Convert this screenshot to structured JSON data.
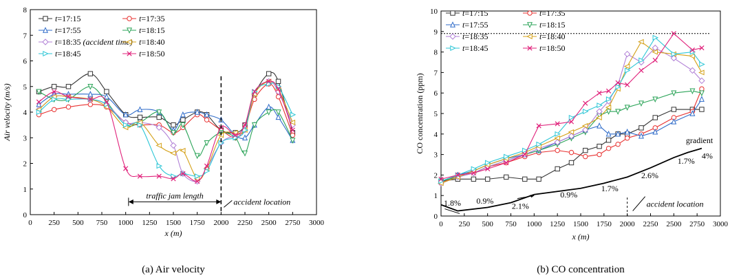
{
  "chart_data": [
    {
      "type": "line",
      "caption": "(a) Air velocity",
      "xlabel": "x (m)",
      "ylabel": "Air velocity (m/s)",
      "xlim": [
        0,
        3000
      ],
      "ylim": [
        0,
        8
      ],
      "xticks": [
        0,
        250,
        500,
        750,
        1000,
        1250,
        1500,
        1750,
        2000,
        2250,
        2500,
        2750,
        3000
      ],
      "yticks": [
        0,
        1,
        2,
        3,
        4,
        5,
        6,
        7,
        8
      ],
      "legend_position": "top-left",
      "annotations": {
        "jam": "traffic jam length",
        "accident": "accident location"
      },
      "accident_x": 2000,
      "jam_range": [
        1030,
        2000
      ],
      "x": [
        90,
        250,
        400,
        630,
        800,
        1000,
        1150,
        1350,
        1500,
        1600,
        1750,
        1850,
        2000,
        2150,
        2250,
        2350,
        2500,
        2600,
        2750
      ],
      "series": [
        {
          "name": "t=17:15",
          "color": "#333333",
          "marker": "square",
          "values": [
            4.8,
            5.0,
            5.0,
            5.5,
            4.8,
            3.9,
            3.8,
            3.8,
            3.5,
            3.7,
            4.0,
            3.9,
            3.3,
            3.2,
            3.5,
            4.7,
            5.5,
            5.2,
            3.2
          ]
        },
        {
          "name": "t=17:35",
          "color": "#e8302f",
          "marker": "circle",
          "values": [
            3.9,
            4.1,
            4.2,
            4.3,
            4.2,
            3.6,
            3.5,
            3.5,
            3.2,
            3.4,
            3.9,
            3.7,
            3.3,
            3.0,
            3.4,
            4.5,
            5.1,
            4.6,
            3.1
          ]
        },
        {
          "name": "t=17:55",
          "color": "#2e6bc9",
          "marker": "triangle-up",
          "values": [
            4.3,
            4.7,
            4.7,
            4.7,
            4.6,
            3.9,
            4.1,
            4.0,
            3.3,
            3.9,
            4.0,
            3.9,
            3.7,
            3.1,
            3.0,
            3.5,
            4.2,
            3.8,
            2.9
          ]
        },
        {
          "name": "t=18:15",
          "color": "#2aa357",
          "marker": "triangle-down",
          "values": [
            4.8,
            4.5,
            4.5,
            5.0,
            4.4,
            3.5,
            3.6,
            4.0,
            3.2,
            3.5,
            2.3,
            2.8,
            3.2,
            3.0,
            2.4,
            3.5,
            4.0,
            4.0,
            2.9
          ]
        },
        {
          "name": "t=18:35 (accident time)",
          "color": "#b07fd6",
          "marker": "diamond",
          "values": [
            4.1,
            4.6,
            4.6,
            4.5,
            4.3,
            3.6,
            3.6,
            3.4,
            2.7,
            1.6,
            1.3,
            1.8,
            2.8,
            3.1,
            3.3,
            4.7,
            5.2,
            4.8,
            3.5
          ]
        },
        {
          "name": "t=18:40",
          "color": "#d4a017",
          "marker": "triangle-left",
          "values": [
            4.1,
            4.6,
            4.6,
            4.5,
            4.2,
            3.4,
            3.6,
            2.7,
            2.4,
            2.5,
            1.4,
            1.8,
            3.1,
            3.2,
            3.3,
            4.7,
            5.2,
            4.9,
            3.6
          ]
        },
        {
          "name": "t=18:45",
          "color": "#2cc6d6",
          "marker": "triangle-right",
          "values": [
            4.0,
            4.5,
            4.5,
            4.5,
            4.3,
            3.5,
            3.5,
            1.9,
            1.5,
            1.6,
            1.5,
            1.7,
            2.8,
            3.0,
            3.3,
            4.8,
            5.1,
            5.0,
            3.9
          ]
        },
        {
          "name": "t=18:50",
          "color": "#e0207a",
          "marker": "x",
          "values": [
            4.4,
            4.8,
            4.6,
            4.5,
            4.4,
            1.8,
            1.5,
            1.5,
            1.4,
            1.6,
            1.3,
            1.9,
            3.4,
            3.1,
            3.5,
            4.8,
            5.2,
            4.9,
            3.3
          ]
        }
      ]
    },
    {
      "type": "line",
      "caption": "(b) CO concentration",
      "xlabel": "x (m)",
      "ylabel": "CO concentration (ppm)",
      "xlim": [
        0,
        3000
      ],
      "ylim": [
        0,
        10
      ],
      "xticks": [
        0,
        250,
        500,
        750,
        1000,
        1250,
        1500,
        1750,
        2000,
        2250,
        2500,
        2750,
        3000
      ],
      "yticks": [
        0,
        1,
        2,
        3,
        4,
        5,
        6,
        7,
        8,
        9,
        10
      ],
      "legend_position": "top-left",
      "threshold_y": 8.9,
      "annotations": {
        "accident": "accident location",
        "gradient": "gradient"
      },
      "accident_x": 2000,
      "x": [
        0,
        180,
        350,
        500,
        700,
        900,
        1050,
        1250,
        1400,
        1550,
        1700,
        1800,
        1900,
        2000,
        2150,
        2300,
        2500,
        2700,
        2800
      ],
      "series": [
        {
          "name": "t=17:15",
          "color": "#333333",
          "marker": "square",
          "values": [
            1.7,
            1.8,
            1.8,
            1.8,
            1.9,
            1.8,
            1.8,
            2.3,
            2.6,
            3.2,
            3.4,
            3.7,
            4.0,
            4.0,
            4.3,
            4.8,
            5.2,
            5.2,
            5.2
          ]
        },
        {
          "name": "t=17:35",
          "color": "#e8302f",
          "marker": "circle",
          "values": [
            1.6,
            2.0,
            2.1,
            2.4,
            2.6,
            2.9,
            3.1,
            3.2,
            3.1,
            2.9,
            3.0,
            3.3,
            3.5,
            3.8,
            4.0,
            4.3,
            4.8,
            5.1,
            6.2
          ]
        },
        {
          "name": "t=17:55",
          "color": "#2e6bc9",
          "marker": "triangle-up",
          "values": [
            1.7,
            2.0,
            2.2,
            2.5,
            2.8,
            3.0,
            3.2,
            3.6,
            3.9,
            4.2,
            4.4,
            4.0,
            4.0,
            4.1,
            3.9,
            4.1,
            4.6,
            5.0,
            5.7
          ]
        },
        {
          "name": "t=18:15",
          "color": "#2aa357",
          "marker": "triangle-down",
          "values": [
            1.7,
            1.9,
            2.1,
            2.4,
            2.7,
            3.0,
            3.2,
            3.5,
            3.8,
            4.1,
            4.9,
            5.1,
            5.1,
            5.3,
            5.5,
            5.7,
            6.0,
            6.1,
            6.0
          ]
        },
        {
          "name": "t=18:35",
          "color": "#b07fd6",
          "marker": "diamond",
          "values": [
            1.6,
            1.9,
            2.1,
            2.4,
            2.7,
            3.0,
            3.3,
            3.6,
            3.9,
            4.2,
            5.1,
            5.6,
            6.4,
            7.9,
            7.5,
            8.2,
            7.7,
            7.1,
            6.6
          ]
        },
        {
          "name": "t=18:40",
          "color": "#d4a017",
          "marker": "triangle-left",
          "values": [
            1.6,
            1.9,
            2.2,
            2.5,
            2.8,
            3.1,
            3.4,
            3.8,
            4.1,
            4.4,
            4.8,
            5.3,
            6.2,
            7.3,
            8.5,
            8.0,
            7.9,
            7.8,
            7.0
          ]
        },
        {
          "name": "t=18:45",
          "color": "#2cc6d6",
          "marker": "triangle-right",
          "values": [
            1.7,
            2.0,
            2.3,
            2.6,
            2.9,
            3.2,
            3.5,
            4.0,
            4.8,
            5.1,
            5.4,
            5.7,
            6.3,
            7.1,
            7.6,
            8.7,
            7.9,
            8.0,
            7.4
          ]
        },
        {
          "name": "t=18:50",
          "color": "#e0207a",
          "marker": "x",
          "values": [
            1.8,
            2.0,
            2.1,
            2.3,
            2.6,
            3.0,
            4.4,
            4.5,
            4.6,
            5.5,
            6.0,
            6.1,
            6.5,
            6.4,
            7.1,
            7.6,
            8.9,
            8.1,
            8.2
          ]
        }
      ],
      "road_profile": {
        "x": [
          0,
          180,
          500,
          750,
          1000,
          1250,
          1500,
          1750,
          2000,
          2250,
          2500,
          2650,
          2800
        ],
        "y": [
          0.55,
          0.25,
          0.42,
          0.65,
          1.05,
          1.2,
          1.35,
          1.6,
          1.9,
          2.35,
          2.85,
          3.1,
          3.3
        ],
        "grade_labels": [
          {
            "text": "1.8%",
            "x": 30,
            "y": 0.5
          },
          {
            "text": "0.9%",
            "x": 380,
            "y": 0.6
          },
          {
            "text": "2.1%",
            "x": 760,
            "y": 0.35
          },
          {
            "text": "0.9%",
            "x": 1280,
            "y": 0.9
          },
          {
            "text": "1.7%",
            "x": 1720,
            "y": 1.2
          },
          {
            "text": "2.6%",
            "x": 2150,
            "y": 1.85
          },
          {
            "text": "1.7%",
            "x": 2540,
            "y": 2.55
          },
          {
            "text": "4%",
            "x": 2800,
            "y": 2.8
          }
        ]
      }
    }
  ]
}
